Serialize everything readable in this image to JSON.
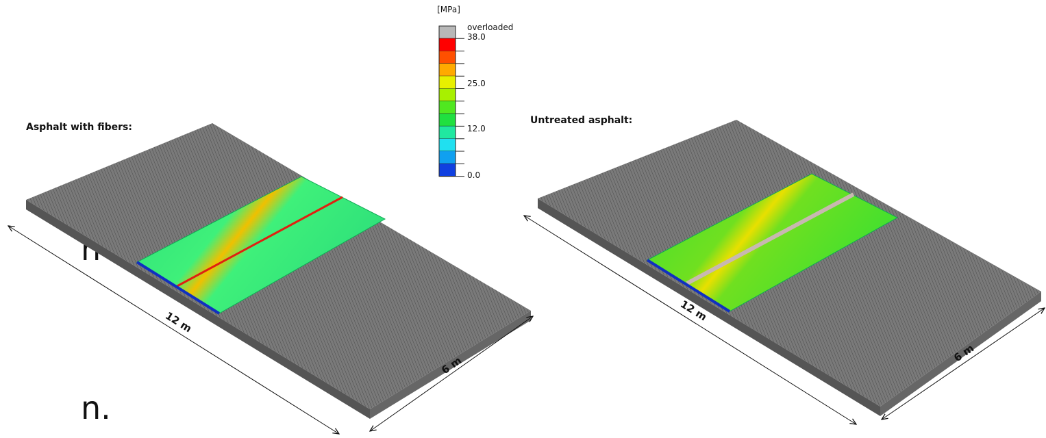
{
  "left_fragments": [
    "n",
    "n."
  ],
  "legend": {
    "unit": "[MPa]",
    "labels": [
      "overloaded",
      "38.0",
      "25.0",
      "12.0",
      "0.0"
    ]
  },
  "panels": [
    {
      "title": "Asphalt with fibers:",
      "length": "12 m",
      "width": "6 m"
    },
    {
      "title": "Untreated asphalt:",
      "length": "12 m",
      "width": "6 m"
    }
  ]
}
